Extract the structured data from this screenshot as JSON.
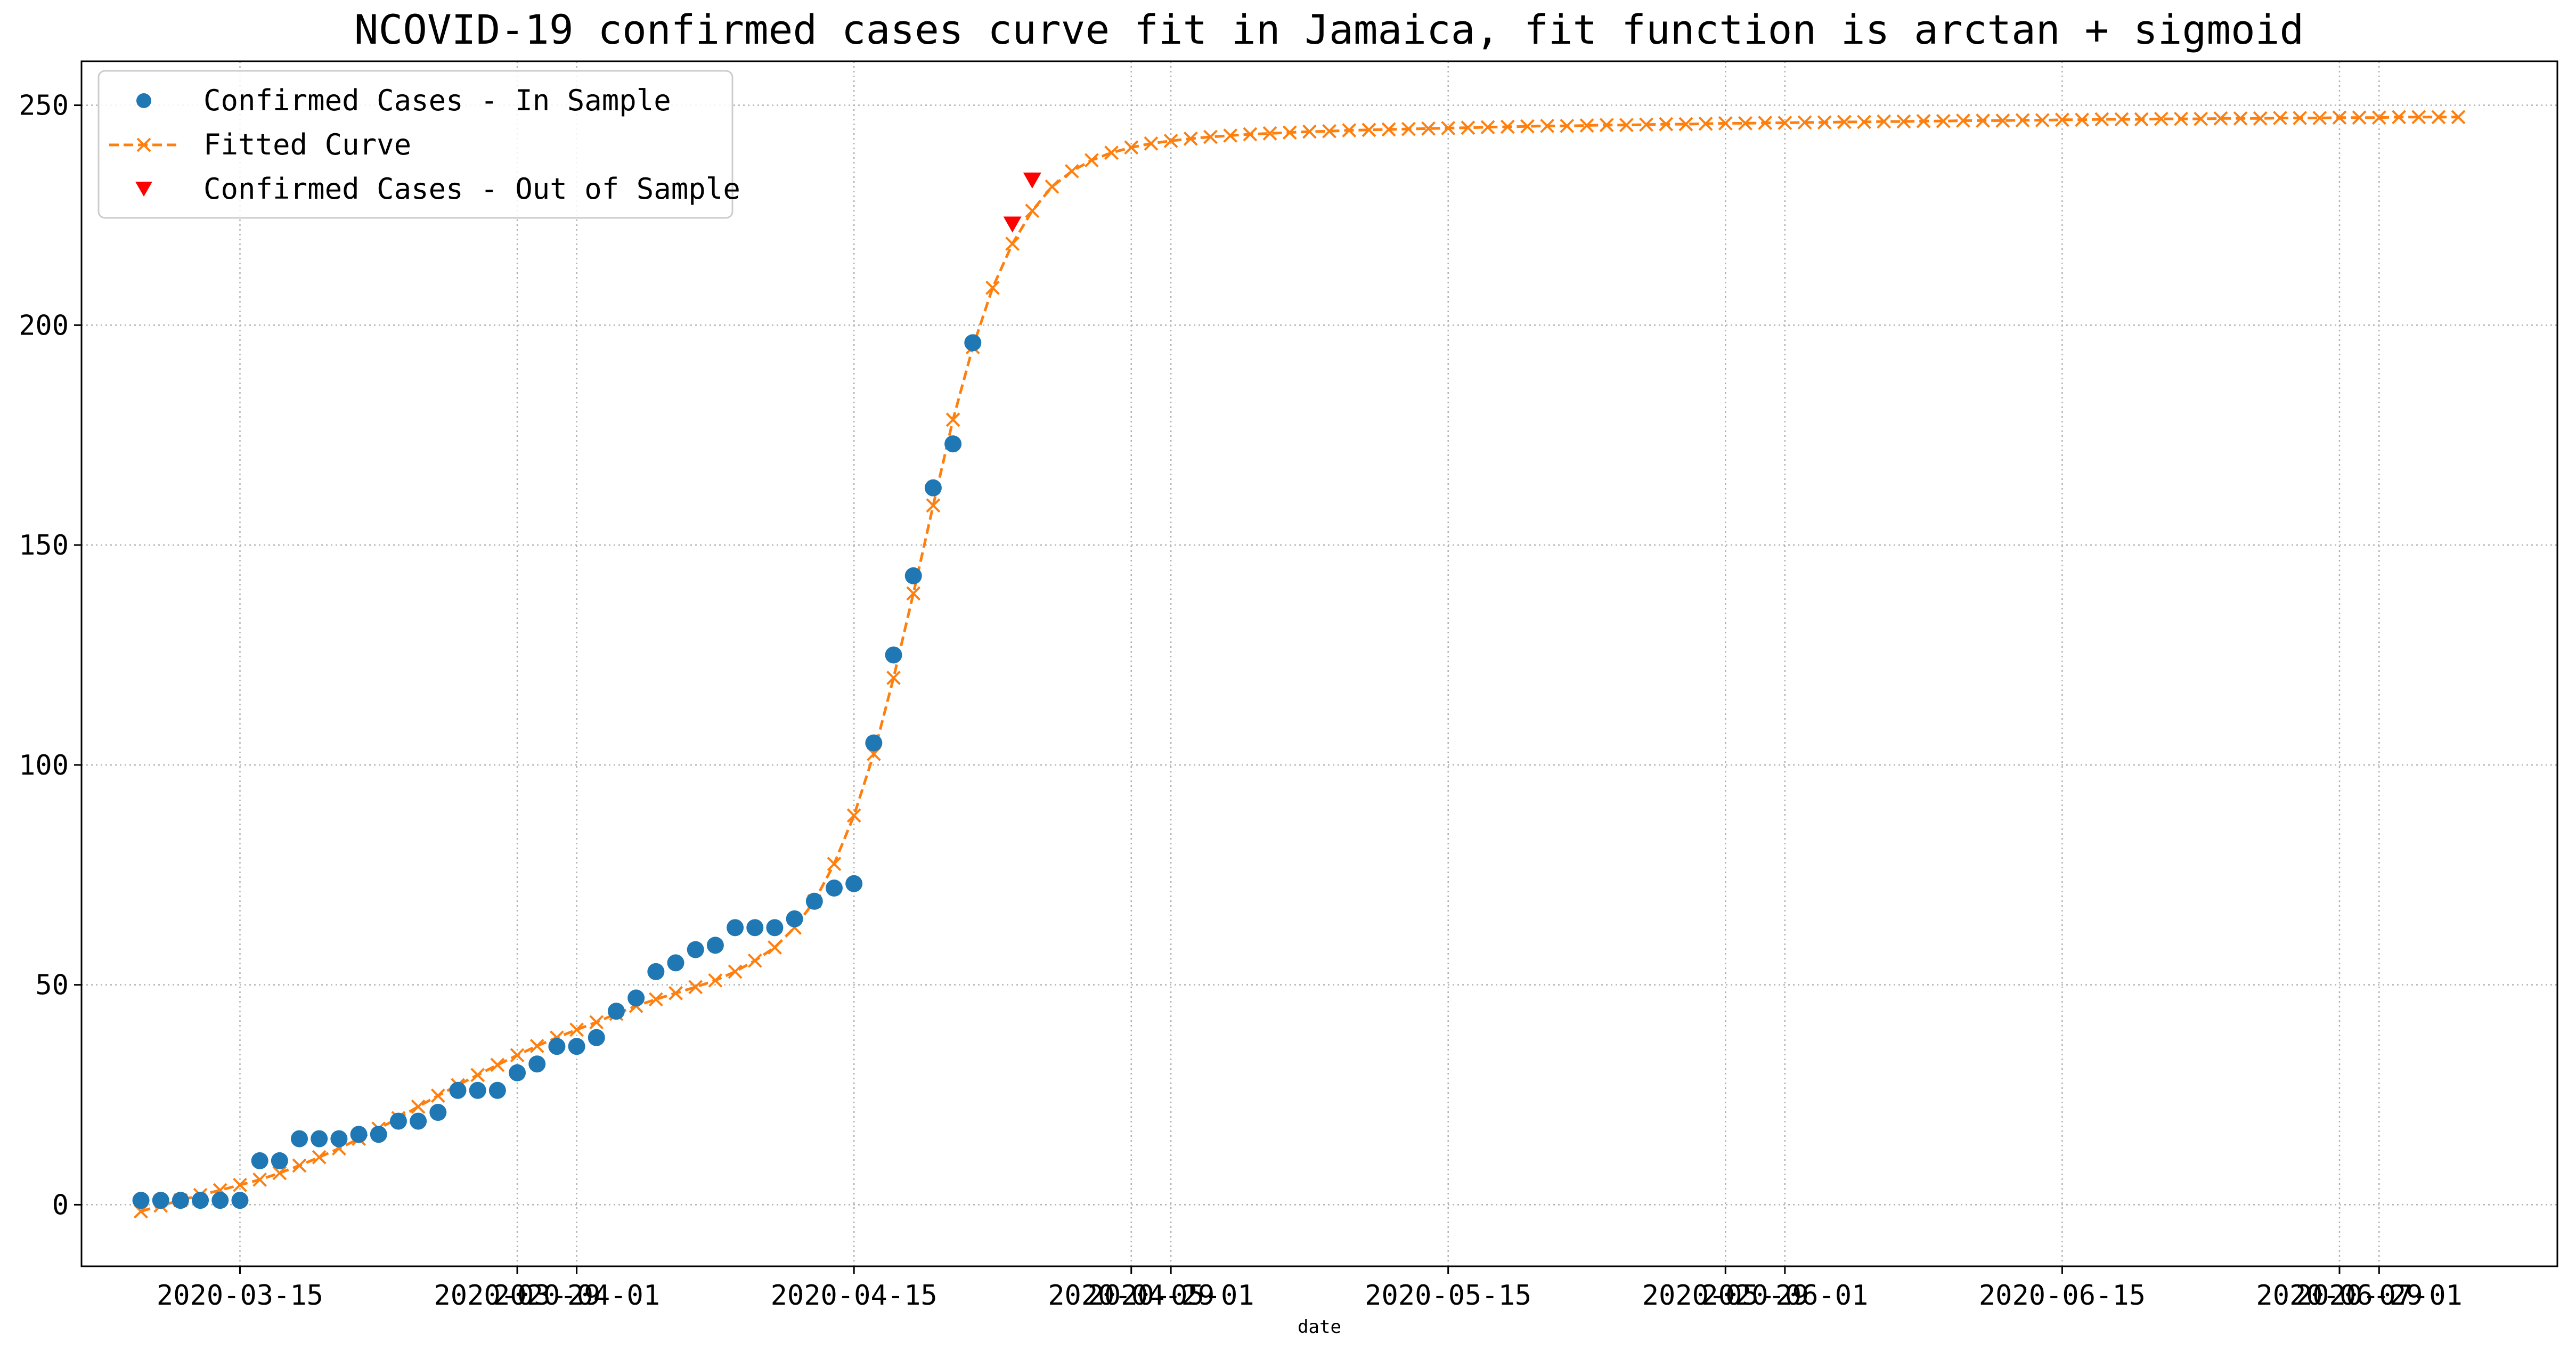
{
  "chart_data": {
    "type": "line",
    "title": "NCOVID-19 confirmed cases curve fit in Jamaica, fit function is arctan + sigmoid",
    "xlabel": "date",
    "ylabel": "",
    "grid": true,
    "legend_placement": "upper-left",
    "colors": {
      "in_sample": "#1f77b4",
      "fitted": "#ff7f0e",
      "out_of_sample": "#ff0000"
    },
    "x_axis": {
      "type": "date",
      "range": [
        "2020-03-07",
        "2020-07-10"
      ]
    },
    "y_axis": {
      "range": [
        -14,
        260
      ]
    },
    "x_ticks": [
      "2020-03-15",
      "2020-03-29",
      "2020-04-01",
      "2020-04-15",
      "2020-04-29",
      "2020-05-01",
      "2020-05-15",
      "2020-05-29",
      "2020-06-01",
      "2020-06-15",
      "2020-06-29",
      "2020-07-01"
    ],
    "y_ticks": [
      0,
      50,
      100,
      150,
      200,
      250
    ],
    "series": [
      {
        "name": "Confirmed Cases - In Sample",
        "marker": "circle",
        "start": "2020-03-10",
        "values": [
          1,
          1,
          1,
          1,
          1,
          1,
          10,
          10,
          15,
          15,
          15,
          16,
          16,
          19,
          19,
          21,
          26,
          26,
          26,
          30,
          32,
          36,
          36,
          38,
          44,
          47,
          53,
          55,
          58,
          59,
          63,
          63,
          63,
          65,
          69,
          72,
          73,
          105,
          125,
          143,
          163,
          173,
          196
        ]
      },
      {
        "name": "Fitted Curve",
        "marker": "x",
        "start": "2020-03-10",
        "values": [
          -1.5,
          -0.2,
          1.0,
          2.2,
          3.3,
          4.5,
          5.7,
          7.2,
          8.9,
          10.8,
          12.8,
          15.0,
          17.3,
          19.7,
          22.3,
          24.8,
          27.2,
          29.5,
          31.8,
          34.0,
          36.1,
          38.0,
          39.8,
          41.5,
          43.4,
          45.2,
          46.7,
          48.1,
          49.5,
          51.0,
          53.0,
          55.5,
          58.5,
          63.0,
          69.0,
          77.5,
          88.5,
          102.5,
          119.8,
          139.0,
          159.0,
          178.5,
          195.0,
          208.5,
          218.5,
          226.0,
          231.5,
          235.0,
          237.5,
          239.2,
          240.4,
          241.3,
          241.9,
          242.4,
          242.8,
          243.1,
          243.4,
          243.6,
          243.8,
          244.0,
          244.1,
          244.3,
          244.4,
          244.5,
          244.6,
          244.7,
          244.8,
          244.9,
          245.0,
          245.1,
          245.2,
          245.3,
          245.3,
          245.4,
          245.5,
          245.5,
          245.6,
          245.7,
          245.7,
          245.8,
          245.9,
          245.9,
          246.0,
          246.0,
          246.1,
          246.1,
          246.2,
          246.2,
          246.3,
          246.3,
          246.4,
          246.4,
          246.5,
          246.5,
          246.5,
          246.6,
          246.6,
          246.7,
          246.7,
          246.8,
          246.8,
          246.8,
          246.9,
          246.9,
          246.9,
          247.0,
          247.0,
          247.0,
          247.1,
          247.1,
          247.1,
          247.2,
          247.2,
          247.2,
          247.3,
          247.3,
          247.3,
          247.3
        ]
      },
      {
        "name": "Confirmed Cases - Out of Sample",
        "marker": "triangle-down",
        "x": [
          "2020-04-23",
          "2020-04-24"
        ],
        "values": [
          223,
          233
        ]
      }
    ]
  }
}
